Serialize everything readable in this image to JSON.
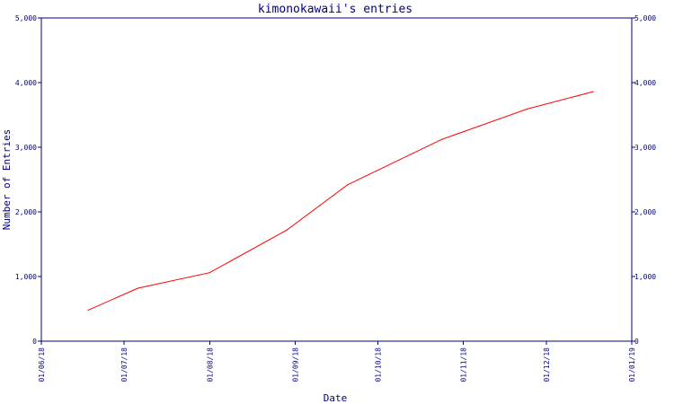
{
  "chart_data": {
    "type": "line",
    "title": "kimonokawaii's entries",
    "xlabel": "Date",
    "ylabel": "Number of Entries",
    "x_ticks": [
      "01/06/18",
      "01/07/18",
      "01/08/18",
      "01/09/18",
      "01/10/18",
      "01/11/18",
      "01/12/18",
      "01/01/19"
    ],
    "y_ticks": [
      "0",
      "1,000",
      "2,000",
      "3,000",
      "4,000",
      "5,000"
    ],
    "y_ticks_right": [
      "0",
      "1,000",
      "2,000",
      "3,000",
      "4,000",
      "5,000"
    ],
    "xlim": [
      "2018-06-01",
      "2019-01-01"
    ],
    "ylim": [
      0,
      5000
    ],
    "series": [
      {
        "color": "#ff0000",
        "points": [
          {
            "x": "2018-06-18",
            "y": 480
          },
          {
            "x": "2018-07-06",
            "y": 820
          },
          {
            "x": "2018-08-01",
            "y": 1060
          },
          {
            "x": "2018-08-29",
            "y": 1720
          },
          {
            "x": "2018-09-20",
            "y": 2420
          },
          {
            "x": "2018-10-24",
            "y": 3120
          },
          {
            "x": "2018-11-24",
            "y": 3590
          },
          {
            "x": "2018-12-18",
            "y": 3860
          }
        ]
      }
    ],
    "grid": false,
    "axis_color": "#000080"
  }
}
